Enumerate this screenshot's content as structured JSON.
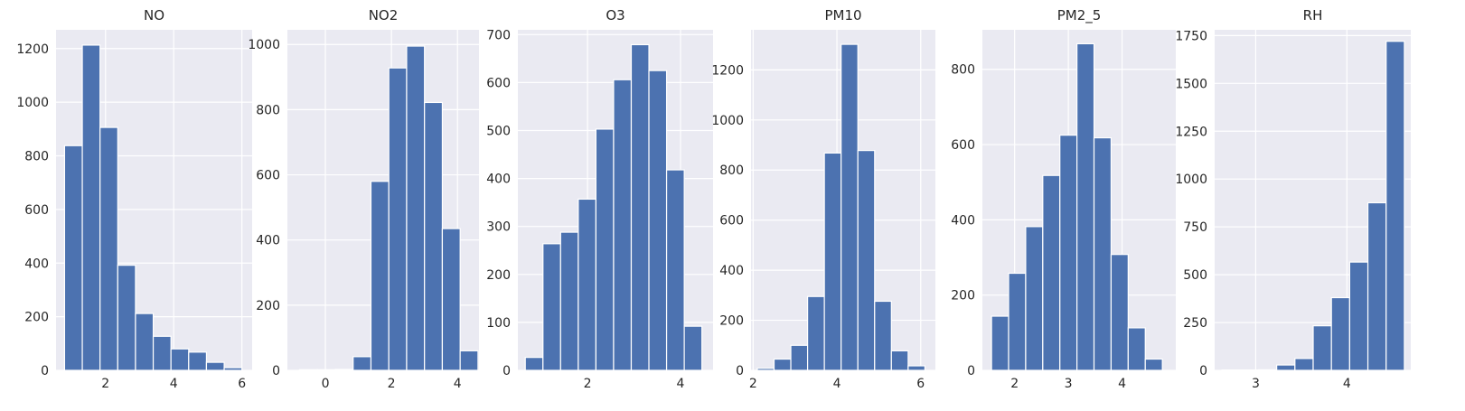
{
  "chart_data": [
    {
      "type": "bar",
      "title": "NO",
      "xlim": [
        0.55,
        6.3
      ],
      "ylim": [
        0,
        1270
      ],
      "xticks": [
        2,
        4,
        6
      ],
      "yticks": [
        0,
        200,
        400,
        600,
        800,
        1000,
        1200
      ],
      "bin_start": 0.8,
      "bin_width": 0.52,
      "values": [
        838,
        1213,
        906,
        392,
        212,
        127,
        80,
        68,
        30,
        10
      ]
    },
    {
      "type": "bar",
      "title": "NO2",
      "xlim": [
        -1.15,
        4.65
      ],
      "ylim": [
        0,
        1045
      ],
      "xticks": [
        0,
        2,
        4
      ],
      "yticks": [
        0,
        200,
        400,
        600,
        800,
        1000
      ],
      "bin_start": -0.78,
      "bin_width": 0.54,
      "values": [
        2,
        2,
        3,
        42,
        580,
        928,
        995,
        822,
        435,
        60
      ]
    },
    {
      "type": "bar",
      "title": "O3",
      "xlim": [
        0.5,
        4.7
      ],
      "ylim": [
        0,
        710
      ],
      "xticks": [
        2,
        4
      ],
      "yticks": [
        0,
        100,
        200,
        300,
        400,
        500,
        600,
        700
      ],
      "bin_start": 0.66,
      "bin_width": 0.38,
      "values": [
        27,
        264,
        288,
        357,
        503,
        606,
        679,
        625,
        418,
        92
      ]
    },
    {
      "type": "bar",
      "title": "PM10",
      "xlim": [
        1.95,
        6.35
      ],
      "ylim": [
        0,
        1360
      ],
      "xticks": [
        2,
        4,
        6
      ],
      "yticks": [
        0,
        200,
        400,
        600,
        800,
        1000,
        1200
      ],
      "bin_start": 2.1,
      "bin_width": 0.4,
      "values": [
        8,
        45,
        100,
        295,
        868,
        1302,
        878,
        276,
        78,
        18
      ]
    },
    {
      "type": "bar",
      "title": "PM2_5",
      "xlim": [
        1.4,
        5.0
      ],
      "ylim": [
        0,
        905
      ],
      "xticks": [
        2,
        3,
        4
      ],
      "yticks": [
        0,
        200,
        400,
        600,
        800
      ],
      "bin_start": 1.57,
      "bin_width": 0.318,
      "values": [
        144,
        258,
        382,
        518,
        625,
        868,
        618,
        308,
        113,
        30
      ]
    },
    {
      "type": "bar",
      "title": "RH",
      "xlim": [
        2.55,
        4.7
      ],
      "ylim": [
        0,
        1780
      ],
      "xticks": [
        3,
        4
      ],
      "yticks": [
        0,
        250,
        500,
        750,
        1000,
        1250,
        1500,
        1750
      ],
      "bin_start": 2.63,
      "bin_width": 0.2,
      "values": [
        2,
        2,
        3,
        28,
        62,
        233,
        380,
        566,
        876,
        1720
      ]
    }
  ]
}
